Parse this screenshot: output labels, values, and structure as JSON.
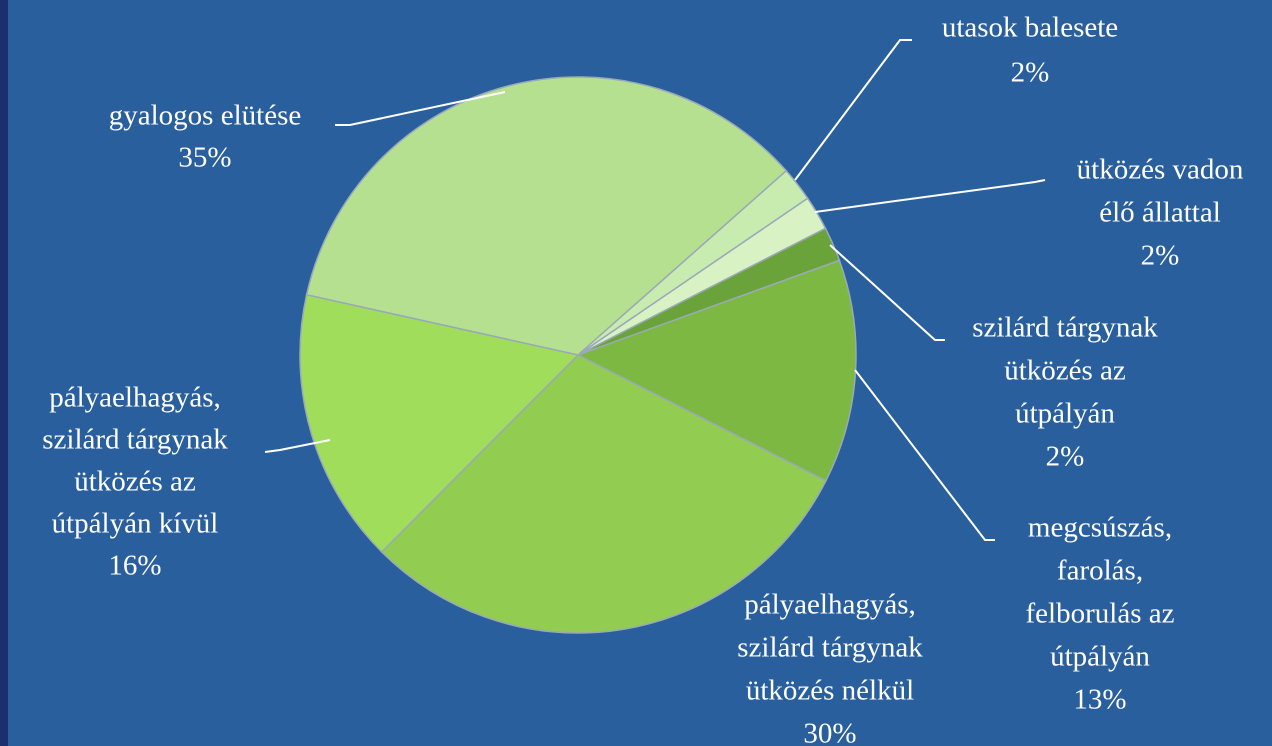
{
  "chart_data": {
    "type": "pie",
    "categories": [
      [
        "gyalogos elütése"
      ],
      [
        "utasok balesete"
      ],
      [
        "ütközés vadon",
        "élő állattal"
      ],
      [
        "szilárd tárgynak",
        "ütközés az",
        "útpályán"
      ],
      [
        "megcsúszás,",
        "farolás,",
        "felborulás az",
        "útpályán"
      ],
      [
        "pályaelhagyás,",
        "szilárd tárgynak",
        "ütközés nélkül"
      ],
      [
        "pályaelhagyás,",
        "szilárd tárgynak",
        "ütközés az",
        "útpályán kívül"
      ]
    ],
    "values": [
      35,
      2,
      2,
      2,
      13,
      30,
      16
    ],
    "value_labels": [
      "35%",
      "2%",
      "2%",
      "2%",
      "13%",
      "30%",
      "16%"
    ],
    "colors": [
      "#b5e08f",
      "#c8ebb0",
      "#d9f2c4",
      "#6aa33a",
      "#7db843",
      "#92cc50",
      "#9fdd5a"
    ]
  }
}
